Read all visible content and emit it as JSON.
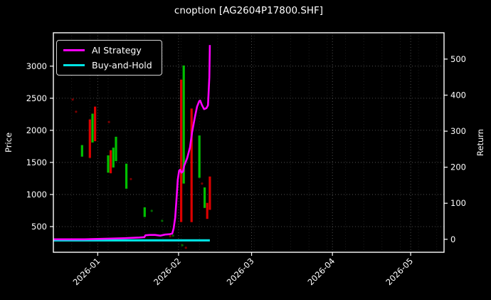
{
  "title": "cnoption [AG2604P17800.SHF]",
  "legend": [
    {
      "label": "AI Strategy",
      "color": "#ff00ff"
    },
    {
      "label": "Buy-and-Hold",
      "color": "#00e5e5"
    }
  ],
  "colors": {
    "background": "#000000",
    "text": "#ffffff",
    "grid": "#ffffff",
    "up": "#00c000",
    "down": "#dc0000",
    "ai_strategy": "#ff00ff",
    "buy_and_hold": "#00e5e5"
  },
  "chart_data": {
    "type": "candlestick+line",
    "title": "cnoption [AG2604P17800.SHF]",
    "xlabel": "",
    "ylabel_left": "Price",
    "ylabel_right": "Return",
    "x_epoch": "2025-12-15",
    "x_tick_labels": [
      "2026-01",
      "2026-02",
      "2026-03",
      "2026-04",
      "2026-05"
    ],
    "x_tick_dates": [
      "2026-01-01",
      "2026-02-01",
      "2026-03-01",
      "2026-04-01",
      "2026-05-01"
    ],
    "left_axis": {
      "label": "Price",
      "ticks": [
        500,
        1000,
        1500,
        2000,
        2500,
        3000
      ],
      "range": [
        100,
        3520
      ]
    },
    "right_axis": {
      "label": "Return",
      "ticks": [
        0,
        100,
        200,
        300,
        400,
        500
      ],
      "range": [
        -36,
        573
      ]
    },
    "grid": true,
    "legend_position": "upper left",
    "price_candles": [
      {
        "date": "2025-12-26",
        "low": 1590,
        "high": 1770,
        "dir": "up"
      },
      {
        "date": "2025-12-29",
        "low": 1570,
        "high": 2170,
        "dir": "down"
      },
      {
        "date": "2025-12-30",
        "low": 1810,
        "high": 2260,
        "dir": "up"
      },
      {
        "date": "2025-12-31",
        "low": 1830,
        "high": 2370,
        "dir": "down"
      },
      {
        "date": "2026-01-05",
        "low": 1340,
        "high": 1610,
        "dir": "up"
      },
      {
        "date": "2026-01-06",
        "low": 1330,
        "high": 1690,
        "dir": "down"
      },
      {
        "date": "2026-01-07",
        "low": 1420,
        "high": 1730,
        "dir": "up"
      },
      {
        "date": "2026-01-08",
        "low": 1520,
        "high": 1900,
        "dir": "up"
      },
      {
        "date": "2026-01-12",
        "low": 1090,
        "high": 1480,
        "dir": "up"
      },
      {
        "date": "2026-01-19",
        "low": 650,
        "high": 800,
        "dir": "up"
      },
      {
        "date": "2026-02-02",
        "low": 570,
        "high": 2790,
        "dir": "down"
      },
      {
        "date": "2026-02-03",
        "low": 1170,
        "high": 3010,
        "dir": "up"
      },
      {
        "date": "2026-02-06",
        "low": 570,
        "high": 2340,
        "dir": "down"
      },
      {
        "date": "2026-02-09",
        "low": 1260,
        "high": 1920,
        "dir": "up"
      },
      {
        "date": "2026-02-11",
        "low": 790,
        "high": 1110,
        "dir": "up"
      },
      {
        "date": "2026-02-12",
        "low": 620,
        "high": 870,
        "dir": "down"
      },
      {
        "date": "2026-02-13",
        "low": 760,
        "high": 1280,
        "dir": "down"
      }
    ],
    "price_dots": [
      {
        "day": 7.4,
        "price": 2480,
        "dir": "down"
      },
      {
        "day": 8.7,
        "price": 2290,
        "dir": "down"
      },
      {
        "day": 21.3,
        "price": 2130,
        "dir": "down"
      },
      {
        "day": 29.7,
        "price": 1240,
        "dir": "down"
      },
      {
        "day": 37.7,
        "price": 745,
        "dir": "up"
      },
      {
        "day": 41.7,
        "price": 590,
        "dir": "up"
      },
      {
        "day": 44.8,
        "price": 350,
        "dir": "down"
      },
      {
        "day": 45.9,
        "price": 360,
        "dir": "up"
      },
      {
        "day": 49.4,
        "price": 210,
        "dir": "up"
      },
      {
        "day": 50.8,
        "price": 170,
        "dir": "down"
      },
      {
        "day": 57.0,
        "price": 1170,
        "dir": "down"
      }
    ],
    "series": [
      {
        "name": "AI Strategy",
        "axis": "right",
        "color": "#ff00ff",
        "width": 2.6,
        "x_unit": "days since 2025-12-15",
        "points": [
          [
            0,
            0
          ],
          [
            6,
            0
          ],
          [
            12,
            0
          ],
          [
            17,
            1
          ],
          [
            22,
            2
          ],
          [
            27,
            3
          ],
          [
            30,
            4
          ],
          [
            33,
            5
          ],
          [
            34.9,
            6
          ],
          [
            35.3,
            11
          ],
          [
            37,
            12
          ],
          [
            39,
            12
          ],
          [
            41,
            10
          ],
          [
            42.8,
            13
          ],
          [
            44.5,
            14
          ],
          [
            45.6,
            16
          ],
          [
            46.1,
            30
          ],
          [
            46.7,
            60
          ],
          [
            47.2,
            110
          ],
          [
            47.7,
            165
          ],
          [
            48.2,
            190
          ],
          [
            48.6,
            193
          ],
          [
            49.1,
            185
          ],
          [
            49.7,
            188
          ],
          [
            50.2,
            205
          ],
          [
            51.3,
            225
          ],
          [
            52.4,
            255
          ],
          [
            53.2,
            298
          ],
          [
            54.3,
            340
          ],
          [
            55.1,
            368
          ],
          [
            55.9,
            383
          ],
          [
            56.3,
            385
          ],
          [
            57,
            372
          ],
          [
            57.8,
            361
          ],
          [
            58.7,
            364
          ],
          [
            59.3,
            372
          ],
          [
            59.8,
            450
          ],
          [
            60,
            539
          ]
        ]
      },
      {
        "name": "Buy-and-Hold",
        "axis": "right",
        "color": "#00e5e5",
        "width": 3.2,
        "x_unit": "days since 2025-12-15",
        "points": [
          [
            0,
            -3
          ],
          [
            60,
            -3
          ]
        ]
      }
    ]
  }
}
